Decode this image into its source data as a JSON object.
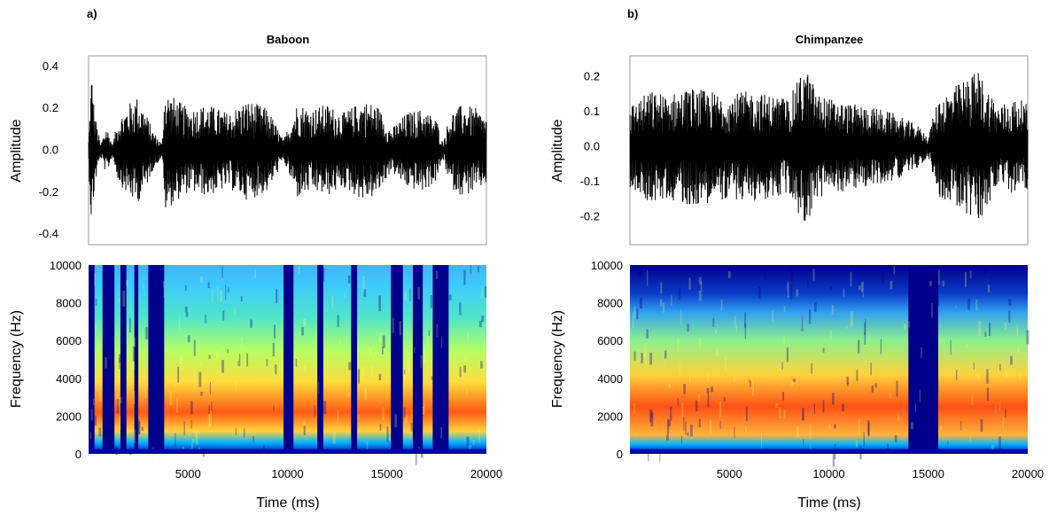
{
  "colors": {
    "waveform": "#000000",
    "frame": "#999999",
    "spectrogram_background": "#00008b",
    "colormap": "jet"
  },
  "chart_data": [
    {
      "type": "line",
      "panel_letter": "a)",
      "title": "Baboon",
      "xlabel": "",
      "ylabel": "Amplitude",
      "xlim": [
        0,
        20000
      ],
      "ylim": [
        -0.45,
        0.45
      ],
      "yticks": [
        "0.4",
        "0.2",
        "0.0",
        "-0.2",
        "-0.4"
      ],
      "ytick_values": [
        0.4,
        0.2,
        0.0,
        -0.2,
        -0.4
      ],
      "grid": false,
      "series": [
        {
          "x": [
            0,
            150,
            300,
            600,
            900,
            1200,
            1500,
            2000,
            2400,
            2800,
            3200,
            3700,
            3800,
            4200,
            5000,
            6000,
            7000,
            8000,
            9000,
            9800,
            10500,
            11200,
            12000,
            12800,
            13800,
            14500,
            15200,
            16000,
            16800,
            17500,
            17800,
            18200,
            18800,
            19500,
            20000
          ],
          "envelope": [
            0.05,
            0.4,
            0.18,
            0.03,
            0.12,
            0.03,
            0.15,
            0.22,
            0.26,
            0.2,
            0.1,
            0.03,
            0.3,
            0.26,
            0.2,
            0.22,
            0.18,
            0.24,
            0.2,
            0.05,
            0.23,
            0.2,
            0.22,
            0.18,
            0.24,
            0.22,
            0.1,
            0.18,
            0.2,
            0.15,
            0.04,
            0.18,
            0.22,
            0.2,
            0.16
          ]
        }
      ]
    },
    {
      "type": "heatmap",
      "panel_letter": "",
      "title": "",
      "xlabel": "Time (ms)",
      "ylabel": "Frequency (Hz)",
      "xlim": [
        0,
        20000
      ],
      "ylim": [
        0,
        10000
      ],
      "xticks": [
        "5000",
        "10000",
        "15000",
        "20000"
      ],
      "xtick_values": [
        5000,
        10000,
        15000,
        20000
      ],
      "yticks": [
        "10000",
        "8000",
        "6000",
        "4000",
        "2000",
        "0"
      ],
      "ytick_values": [
        10000,
        8000,
        6000,
        4000,
        2000,
        0
      ],
      "energy_band_hz": [
        1000,
        4000
      ],
      "note_intervals_ms": [
        [
          300,
          700
        ],
        [
          1300,
          1600
        ],
        [
          1900,
          2300
        ],
        [
          2500,
          3000
        ],
        [
          3800,
          9800
        ],
        [
          10300,
          11500
        ],
        [
          11800,
          13200
        ],
        [
          13500,
          15200
        ],
        [
          15800,
          16300
        ],
        [
          16800,
          17300
        ],
        [
          18100,
          20000
        ]
      ]
    },
    {
      "type": "line",
      "panel_letter": "b)",
      "title": "Chimpanzee",
      "xlabel": "",
      "ylabel": "Amplitude",
      "xlim": [
        0,
        20000
      ],
      "ylim": [
        -0.28,
        0.26
      ],
      "yticks": [
        "0.2",
        "0.1",
        "0.0",
        "-0.1",
        "-0.2"
      ],
      "ytick_values": [
        0.2,
        0.1,
        0.0,
        -0.1,
        -0.2
      ],
      "grid": false,
      "series": [
        {
          "x": [
            0,
            1000,
            2000,
            3000,
            4000,
            5000,
            6000,
            7000,
            8000,
            8800,
            9500,
            10500,
            11500,
            12500,
            13500,
            14500,
            15000,
            15500,
            16500,
            17500,
            18500,
            19500,
            20000
          ],
          "envelope": [
            0.12,
            0.16,
            0.15,
            0.17,
            0.16,
            0.15,
            0.16,
            0.15,
            0.14,
            0.23,
            0.15,
            0.13,
            0.12,
            0.11,
            0.09,
            0.06,
            0.03,
            0.14,
            0.18,
            0.22,
            0.12,
            0.14,
            0.12
          ]
        }
      ]
    },
    {
      "type": "heatmap",
      "panel_letter": "",
      "title": "",
      "xlabel": "Time (ms)",
      "ylabel": "Frequency (Hz)",
      "xlim": [
        0,
        20000
      ],
      "ylim": [
        0,
        10000
      ],
      "xticks": [
        "5000",
        "10000",
        "15000",
        "20000"
      ],
      "xtick_values": [
        5000,
        10000,
        15000,
        20000
      ],
      "yticks": [
        "10000",
        "8000",
        "6000",
        "4000",
        "2000",
        "0"
      ],
      "ytick_values": [
        10000,
        8000,
        6000,
        4000,
        2000,
        0
      ],
      "energy_band_hz": [
        500,
        4500
      ],
      "note_intervals_ms": [
        [
          0,
          14000
        ],
        [
          15500,
          20000
        ]
      ]
    }
  ]
}
